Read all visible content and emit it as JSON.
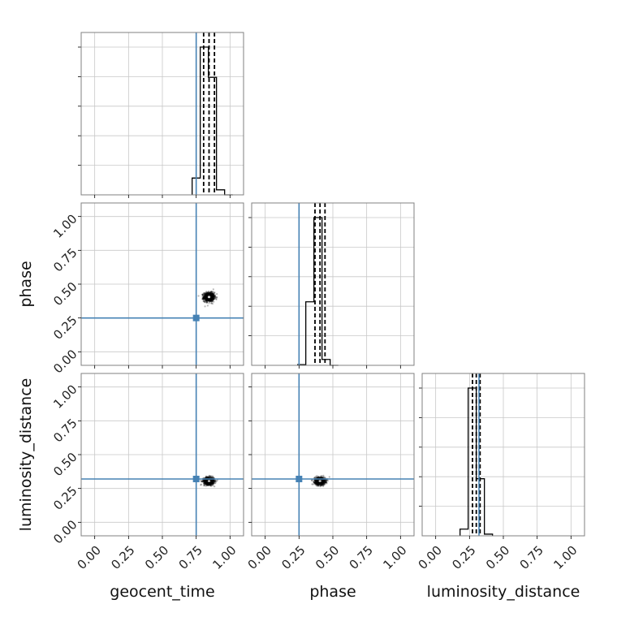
{
  "chart_data": {
    "type": "scatter",
    "subtype": "corner",
    "parameters": [
      "geocent_time",
      "phase",
      "luminosity_distance"
    ],
    "axis_labels": [
      "geocent_time",
      "phase",
      "luminosity_distance"
    ],
    "ylabels": [
      "phase",
      "luminosity_distance"
    ],
    "range": [
      -0.1,
      1.1
    ],
    "tick_values": [
      0.0,
      0.25,
      0.5,
      0.75,
      1.0
    ],
    "tick_labels": [
      "0.00",
      "0.25",
      "0.50",
      "0.75",
      "1.00"
    ],
    "truths": [
      0.75,
      0.25,
      0.32
    ],
    "quantiles": [
      [
        0.805,
        0.845,
        0.885
      ],
      [
        0.368,
        0.405,
        0.442
      ],
      [
        0.272,
        0.3,
        0.328
      ]
    ],
    "histograms": [
      {
        "edges": [
          0.72,
          0.78,
          0.84,
          0.9,
          0.96,
          1.02
        ],
        "counts": [
          0.1,
          0.88,
          0.7,
          0.03,
          0.0
        ]
      },
      {
        "edges": [
          0.24,
          0.3,
          0.36,
          0.42,
          0.48,
          0.54
        ],
        "counts": [
          0.005,
          0.43,
          1.0,
          0.04,
          0.0
        ]
      },
      {
        "edges": [
          0.18,
          0.24,
          0.3,
          0.36,
          0.42
        ],
        "counts": [
          0.04,
          0.88,
          0.34,
          0.01
        ]
      }
    ],
    "scatter_centers": [
      {
        "row": 1,
        "col": 0,
        "x": 0.845,
        "y": 0.405,
        "sx": 0.035,
        "sy": 0.03
      },
      {
        "row": 2,
        "col": 0,
        "x": 0.845,
        "y": 0.305,
        "sx": 0.035,
        "sy": 0.025
      },
      {
        "row": 2,
        "col": 1,
        "x": 0.405,
        "y": 0.305,
        "sx": 0.035,
        "sy": 0.025
      }
    ],
    "grid": true,
    "colors": {
      "truth": "#4682b4",
      "data": "#000000",
      "grid": "#c8c8c8"
    }
  }
}
